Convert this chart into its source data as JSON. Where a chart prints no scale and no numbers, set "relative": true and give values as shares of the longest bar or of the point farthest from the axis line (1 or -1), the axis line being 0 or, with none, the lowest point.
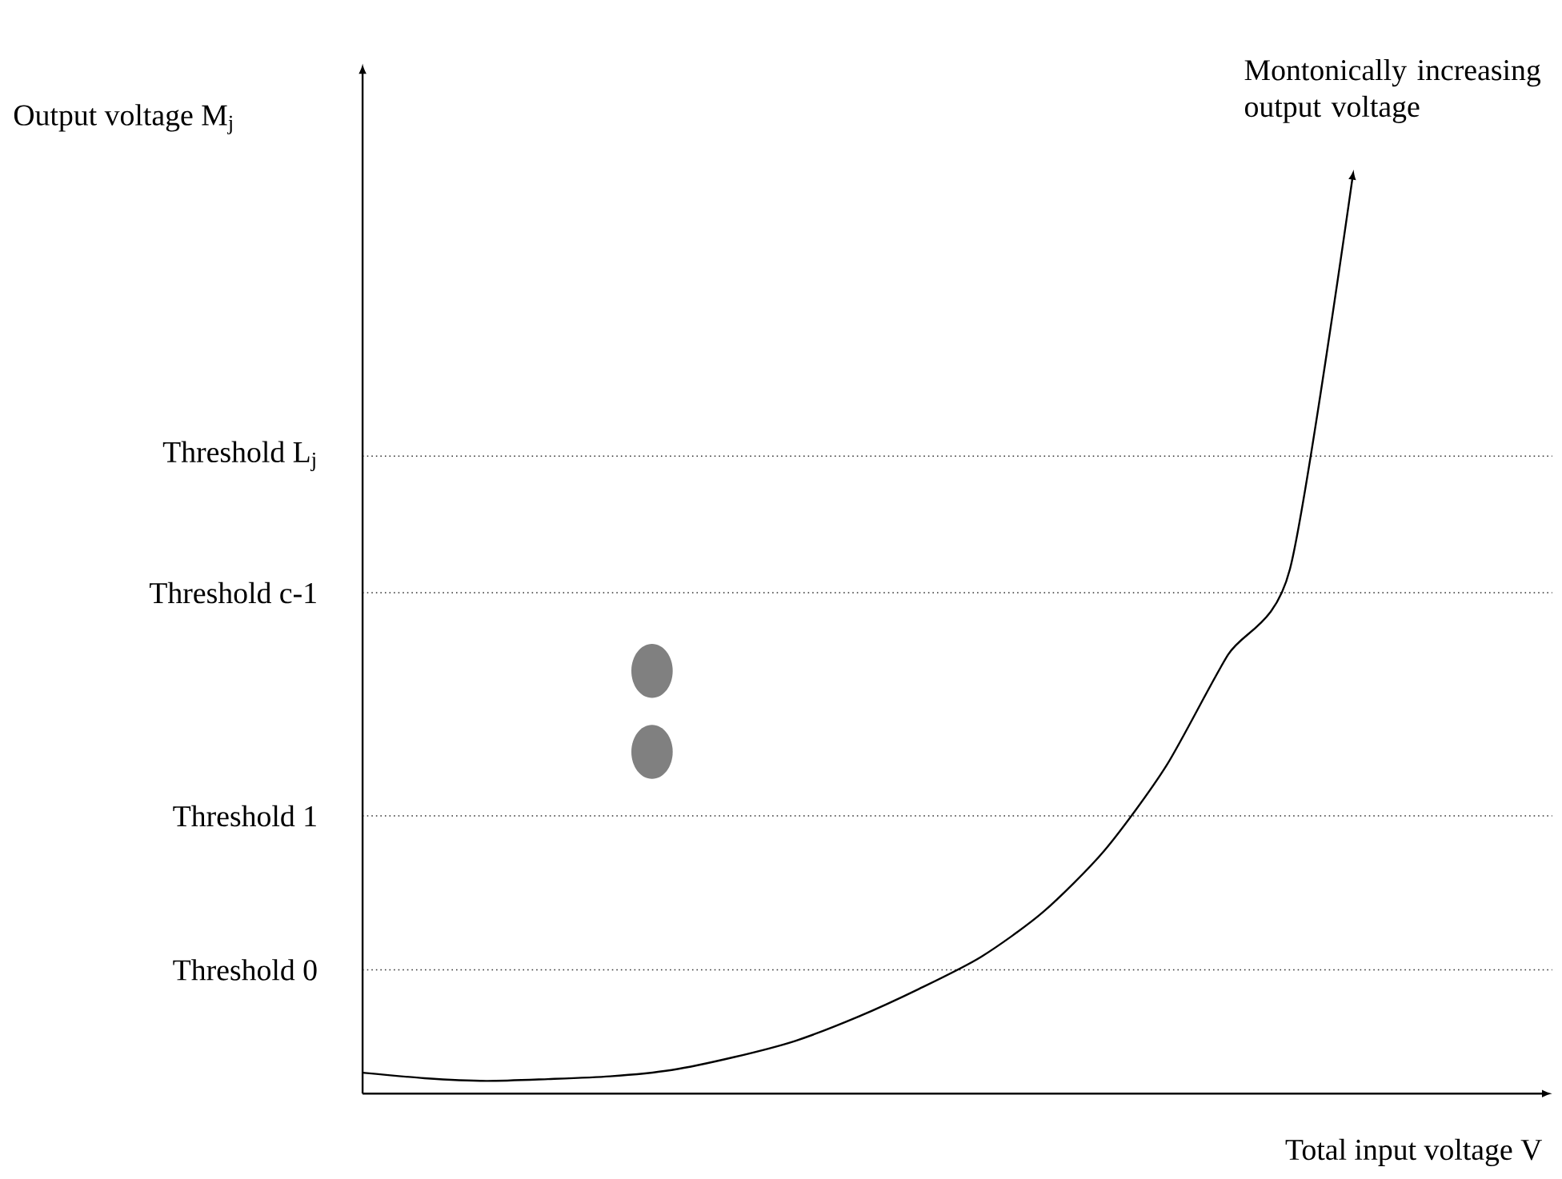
{
  "chart_data": {
    "type": "line",
    "relative": true,
    "xlabel": "Total input voltage V",
    "ylabel": "Output voltage M$_{j}$",
    "annotations": [
      "Montonically increasing output voltage"
    ],
    "categories": [
      null,
      null,
      null,
      null,
      null,
      null,
      null,
      null,
      null,
      null,
      null,
      null,
      null,
      null,
      null,
      null,
      null
    ],
    "series": [
      {
        "color": "#000000",
        "values": [
          0.023,
          0.017,
          0.014,
          0.016,
          0.019,
          0.026,
          0.04,
          0.058,
          0.084,
          0.115,
          0.15,
          0.199,
          0.267,
          0.36,
          0.482,
          0.576,
          1
        ]
      }
    ],
    "ref_lines": [
      {
        "axis": "y",
        "value": 0.7,
        "label": "Threshold L$_{j}$",
        "color": "#333333",
        "line_style": "dotted"
      },
      {
        "axis": "y",
        "value": 0.55,
        "label": "Threshold c-1",
        "color": "#333333",
        "line_style": "dotted"
      },
      {
        "axis": "y",
        "value": 0.305,
        "label": "Threshold 1",
        "color": "#333333",
        "line_style": "dotted"
      },
      {
        "axis": "y",
        "value": 0.136,
        "label": "Threshold 0",
        "color": "#333333",
        "line_style": "dotted"
      }
    ],
    "marker": "none",
    "line_style": "solid"
  }
}
